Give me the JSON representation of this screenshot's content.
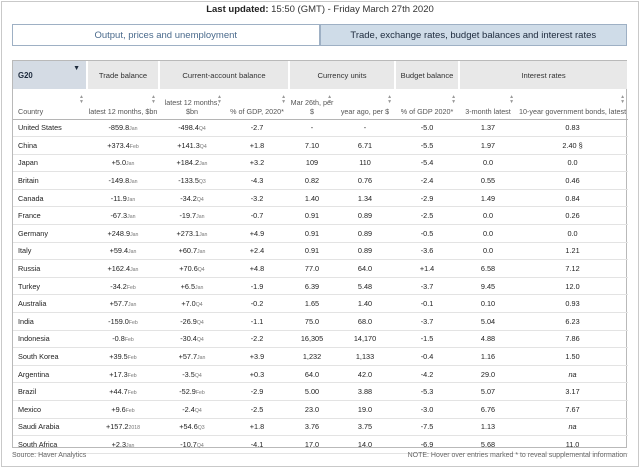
{
  "last_updated": {
    "label": "Last updated:",
    "value": "15:50 (GMT) - Friday March 27th 2020"
  },
  "tabs": [
    {
      "label": "Output, prices and unemployment",
      "active": false
    },
    {
      "label": "Trade, exchange rates, budget balances and interest rates",
      "active": true
    }
  ],
  "group_select": {
    "value": "G20"
  },
  "group_headers": [
    "Trade balance",
    "Current-account balance",
    "Currency units",
    "Budget balance",
    "Interest rates"
  ],
  "sub_headers": [
    "Country",
    "latest 12 months, $bn",
    "latest 12 months, $bn",
    "% of GDP, 2020*",
    "Mar 26th, per $",
    "year ago, per $",
    "% of GDP 2020*",
    "3-month latest",
    "10-year government bonds, latest"
  ],
  "rows": [
    {
      "country": "United States",
      "tb": "-859.8",
      "tb_p": "Jan",
      "ca": "-498.4",
      "ca_p": "Q4",
      "ca_gdp": "-2.7",
      "cur": "-",
      "cur_ya": "-",
      "bb": "-5.0",
      "r3m": "1.37",
      "r10y": "0.83",
      "r10y_it": false
    },
    {
      "country": "China",
      "tb": "+373.4",
      "tb_p": "Feb",
      "ca": "+141.3",
      "ca_p": "Q4",
      "ca_gdp": "+1.8",
      "cur": "7.10",
      "cur_ya": "6.71",
      "bb": "-5.5",
      "r3m": "1.97",
      "r10y": "2.40 §",
      "r10y_it": false
    },
    {
      "country": "Japan",
      "tb": "+5.0",
      "tb_p": "Jan",
      "ca": "+184.2",
      "ca_p": "Jan",
      "ca_gdp": "+3.2",
      "cur": "109",
      "cur_ya": "110",
      "bb": "-5.4",
      "r3m": "0.0",
      "r10y": "0.0",
      "r10y_it": false
    },
    {
      "country": "Britain",
      "tb": "-149.8",
      "tb_p": "Jan",
      "ca": "-133.5",
      "ca_p": "Q3",
      "ca_gdp": "-4.3",
      "cur": "0.82",
      "cur_ya": "0.76",
      "bb": "-2.4",
      "r3m": "0.55",
      "r10y": "0.46",
      "r10y_it": false
    },
    {
      "country": "Canada",
      "tb": "-11.9",
      "tb_p": "Jan",
      "ca": "-34.2",
      "ca_p": "Q4",
      "ca_gdp": "-3.2",
      "cur": "1.40",
      "cur_ya": "1.34",
      "bb": "-2.9",
      "r3m": "1.49",
      "r10y": "0.84",
      "r10y_it": false
    },
    {
      "country": "France",
      "tb": "-67.3",
      "tb_p": "Jan",
      "ca": "-19.7",
      "ca_p": "Jan",
      "ca_gdp": "-0.7",
      "cur": "0.91",
      "cur_ya": "0.89",
      "bb": "-2.5",
      "r3m": "0.0",
      "r10y": "0.26",
      "r10y_it": false
    },
    {
      "country": "Germany",
      "tb": "+248.9",
      "tb_p": "Jan",
      "ca": "+273.1",
      "ca_p": "Jan",
      "ca_gdp": "+4.9",
      "cur": "0.91",
      "cur_ya": "0.89",
      "bb": "-0.5",
      "r3m": "0.0",
      "r10y": "0.0",
      "r10y_it": false
    },
    {
      "country": "Italy",
      "tb": "+59.4",
      "tb_p": "Jan",
      "ca": "+60.7",
      "ca_p": "Jan",
      "ca_gdp": "+2.4",
      "cur": "0.91",
      "cur_ya": "0.89",
      "bb": "-3.6",
      "r3m": "0.0",
      "r10y": "1.21",
      "r10y_it": false
    },
    {
      "country": "Russia",
      "tb": "+162.4",
      "tb_p": "Jan",
      "ca": "+70.6",
      "ca_p": "Q4",
      "ca_gdp": "+4.8",
      "cur": "77.0",
      "cur_ya": "64.0",
      "bb": "+1.4",
      "r3m": "6.58",
      "r10y": "7.12",
      "r10y_it": false
    },
    {
      "country": "Turkey",
      "tb": "-34.2",
      "tb_p": "Feb",
      "ca": "+6.5",
      "ca_p": "Jan",
      "ca_gdp": "-1.9",
      "cur": "6.39",
      "cur_ya": "5.48",
      "bb": "-3.7",
      "r3m": "9.45",
      "r10y": "12.0",
      "r10y_it": false
    },
    {
      "country": "Australia",
      "tb": "+57.7",
      "tb_p": "Jan",
      "ca": "+7.0",
      "ca_p": "Q4",
      "ca_gdp": "-0.2",
      "cur": "1.65",
      "cur_ya": "1.40",
      "bb": "-0.1",
      "r3m": "0.10",
      "r10y": "0.93",
      "r10y_it": false
    },
    {
      "country": "India",
      "tb": "-159.0",
      "tb_p": "Feb",
      "ca": "-26.9",
      "ca_p": "Q4",
      "ca_gdp": "-1.1",
      "cur": "75.0",
      "cur_ya": "68.0",
      "bb": "-3.7",
      "r3m": "5.04",
      "r10y": "6.23",
      "r10y_it": false
    },
    {
      "country": "Indonesia",
      "tb": "-0.8",
      "tb_p": "Feb",
      "ca": "-30.4",
      "ca_p": "Q4",
      "ca_gdp": "-2.2",
      "cur": "16,305",
      "cur_ya": "14,170",
      "bb": "-1.5",
      "r3m": "4.88",
      "r10y": "7.86",
      "r10y_it": false
    },
    {
      "country": "South Korea",
      "tb": "+39.5",
      "tb_p": "Feb",
      "ca": "+57.7",
      "ca_p": "Jan",
      "ca_gdp": "+3.9",
      "cur": "1,232",
      "cur_ya": "1,133",
      "bb": "-0.4",
      "r3m": "1.16",
      "r10y": "1.50",
      "r10y_it": false
    },
    {
      "country": "Argentina",
      "tb": "+17.3",
      "tb_p": "Feb",
      "ca": "-3.5",
      "ca_p": "Q4",
      "ca_gdp": "+0.3",
      "cur": "64.0",
      "cur_ya": "42.0",
      "bb": "-4.2",
      "r3m": "29.0",
      "r10y": "na",
      "r10y_it": true
    },
    {
      "country": "Brazil",
      "tb": "+44.7",
      "tb_p": "Feb",
      "ca": "-52.9",
      "ca_p": "Feb",
      "ca_gdp": "-2.9",
      "cur": "5.00",
      "cur_ya": "3.88",
      "bb": "-5.3",
      "r3m": "5.07",
      "r10y": "3.17",
      "r10y_it": false
    },
    {
      "country": "Mexico",
      "tb": "+9.6",
      "tb_p": "Feb",
      "ca": "-2.4",
      "ca_p": "Q4",
      "ca_gdp": "-2.5",
      "cur": "23.0",
      "cur_ya": "19.0",
      "bb": "-3.0",
      "r3m": "6.76",
      "r10y": "7.67",
      "r10y_it": false
    },
    {
      "country": "Saudi Arabia",
      "tb": "+157.2",
      "tb_p": "2018",
      "ca": "+54.6",
      "ca_p": "Q3",
      "ca_gdp": "+1.8",
      "cur": "3.76",
      "cur_ya": "3.75",
      "bb": "-7.5",
      "r3m": "1.13",
      "r10y": "na",
      "r10y_it": true
    },
    {
      "country": "South Africa",
      "tb": "+2.3",
      "tb_p": "Jan",
      "ca": "-10.7",
      "ca_p": "Q4",
      "ca_gdp": "-4.1",
      "cur": "17.0",
      "cur_ya": "14.0",
      "bb": "-6.9",
      "r3m": "5.68",
      "r10y": "11.0",
      "r10y_it": false
    }
  ],
  "footer": {
    "source": "Source: Haver Analytics",
    "note": "NOTE: Hover over entries marked * to reveal supplemental information"
  }
}
